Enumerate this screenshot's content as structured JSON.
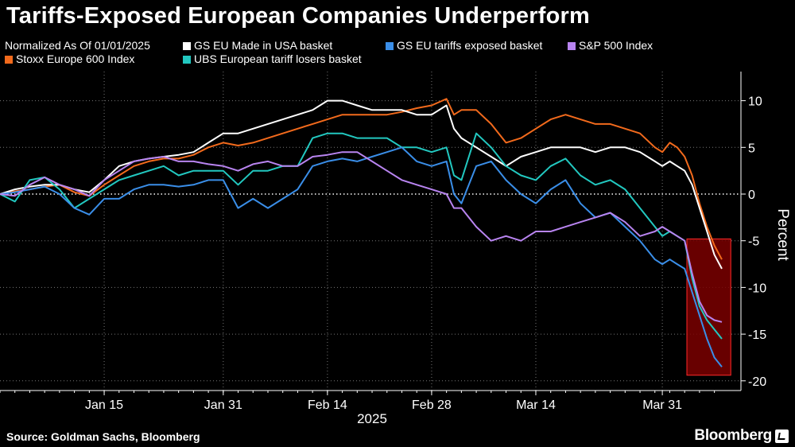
{
  "title": "Tariffs-Exposed European Companies Underperform",
  "source": "Source: Goldman Sachs, Bloomberg",
  "brand": "Bloomberg",
  "legend": {
    "note": "Normalized As Of 01/01/2025"
  },
  "colors": {
    "background": "#000000",
    "grid": "#777777",
    "highlight_fill": "#7a0000",
    "highlight_stroke": "#ff2a2a"
  },
  "chart_data": {
    "type": "line",
    "title": "Tariffs-Exposed European Companies Underperform",
    "xlabel": "2025",
    "ylabel": "Percent",
    "ylim": [
      -21,
      13
    ],
    "yticks": [
      10,
      5,
      0,
      -5,
      -10,
      -15,
      -20
    ],
    "xlim": [
      0,
      97
    ],
    "zero_line": "dotted",
    "x_ticks": [
      {
        "x": 14,
        "label": "Jan 15"
      },
      {
        "x": 30,
        "label": "Jan 31"
      },
      {
        "x": 44,
        "label": "Feb 14"
      },
      {
        "x": 58,
        "label": "Feb 28"
      },
      {
        "x": 72,
        "label": "Mar 14"
      },
      {
        "x": 89,
        "label": "Mar 31"
      }
    ],
    "highlight": {
      "x_from": 92.3,
      "x_to": 98.2,
      "y_from": -19.4,
      "y_to": -4.8
    },
    "series": [
      {
        "name": "Stoxx Europe 600 Index",
        "color": "#f26a1c",
        "x": [
          0,
          2,
          4,
          6,
          8,
          10,
          12,
          14,
          16,
          18,
          20,
          22,
          24,
          26,
          28,
          30,
          32,
          34,
          36,
          38,
          40,
          42,
          44,
          46,
          48,
          50,
          52,
          54,
          56,
          58,
          60,
          61,
          62,
          64,
          66,
          68,
          70,
          72,
          74,
          76,
          78,
          80,
          82,
          84,
          86,
          88,
          89,
          90,
          91,
          92,
          93,
          94,
          95,
          96,
          97
        ],
        "y": [
          0,
          0.3,
          0.5,
          0.8,
          1.0,
          0.2,
          -0.2,
          1.0,
          2.0,
          3.0,
          3.5,
          3.8,
          3.8,
          4.2,
          5.0,
          5.5,
          5.2,
          5.5,
          6.0,
          6.5,
          7.0,
          7.5,
          8.0,
          8.5,
          8.5,
          8.5,
          8.5,
          8.8,
          9.2,
          9.5,
          10.2,
          8.5,
          9.0,
          9.0,
          7.5,
          5.5,
          6.0,
          7.0,
          8.0,
          8.5,
          8.0,
          7.5,
          7.5,
          7.0,
          6.5,
          5.0,
          4.5,
          5.5,
          5.0,
          4.0,
          2.0,
          -1.0,
          -3.5,
          -5.5,
          -7.0
        ]
      },
      {
        "name": "GS EU Made in USA basket",
        "color": "#ffffff",
        "x": [
          0,
          2,
          4,
          6,
          8,
          10,
          12,
          14,
          16,
          18,
          20,
          22,
          24,
          26,
          28,
          30,
          32,
          34,
          36,
          38,
          40,
          42,
          44,
          46,
          48,
          50,
          52,
          54,
          56,
          58,
          60,
          61,
          62,
          64,
          66,
          68,
          70,
          72,
          74,
          76,
          78,
          80,
          82,
          84,
          86,
          88,
          89,
          90,
          91,
          92,
          93,
          94,
          95,
          96,
          97
        ],
        "y": [
          0,
          0.5,
          0.8,
          1.0,
          1.0,
          0.5,
          0.2,
          1.5,
          3.0,
          3.5,
          3.8,
          4.0,
          4.2,
          4.5,
          5.5,
          6.5,
          6.5,
          7.0,
          7.5,
          8.0,
          8.5,
          9.0,
          10.0,
          10.0,
          9.5,
          9.0,
          9.0,
          9.0,
          8.5,
          8.5,
          9.5,
          7.0,
          6.0,
          5.0,
          4.0,
          3.0,
          4.0,
          4.5,
          5.0,
          5.0,
          5.0,
          4.5,
          5.0,
          5.0,
          4.5,
          3.5,
          3.0,
          3.5,
          3.0,
          2.5,
          1.0,
          -1.5,
          -4.0,
          -6.5,
          -8.0
        ]
      },
      {
        "name": "UBS European tariff losers basket",
        "color": "#22c8c0",
        "x": [
          0,
          2,
          4,
          6,
          8,
          10,
          12,
          14,
          16,
          18,
          20,
          22,
          24,
          26,
          28,
          30,
          32,
          34,
          36,
          38,
          40,
          42,
          44,
          46,
          48,
          50,
          52,
          54,
          56,
          58,
          60,
          61,
          62,
          64,
          66,
          68,
          70,
          72,
          74,
          76,
          78,
          80,
          82,
          84,
          86,
          88,
          89,
          90,
          91,
          92,
          93,
          94,
          95,
          96,
          97
        ],
        "y": [
          0,
          -0.8,
          1.5,
          1.8,
          0.5,
          -1.5,
          -0.5,
          0.5,
          1.5,
          2.0,
          2.5,
          3.0,
          2.0,
          2.5,
          2.5,
          2.5,
          1.0,
          2.5,
          2.5,
          3.0,
          3.0,
          6.0,
          6.5,
          6.5,
          6.0,
          6.0,
          6.0,
          5.0,
          5.0,
          4.5,
          5.0,
          2.0,
          1.5,
          6.5,
          5.0,
          3.0,
          2.0,
          1.5,
          3.0,
          3.8,
          2.0,
          1.0,
          1.5,
          0.5,
          -1.5,
          -3.5,
          -4.5,
          -4.0,
          -4.5,
          -5.0,
          -9.0,
          -12.0,
          -13.5,
          -14.5,
          -15.5
        ]
      },
      {
        "name": "GS EU tariffs exposed basket",
        "color": "#3a8ee8",
        "x": [
          0,
          2,
          4,
          6,
          8,
          10,
          12,
          14,
          16,
          18,
          20,
          22,
          24,
          26,
          28,
          30,
          32,
          34,
          36,
          38,
          40,
          42,
          44,
          46,
          48,
          50,
          52,
          54,
          56,
          58,
          60,
          61,
          62,
          64,
          66,
          68,
          70,
          72,
          74,
          76,
          78,
          80,
          82,
          84,
          86,
          88,
          89,
          90,
          91,
          92,
          93,
          94,
          95,
          96,
          97
        ],
        "y": [
          0,
          0.2,
          0.5,
          0.8,
          0.0,
          -1.5,
          -2.2,
          -0.5,
          -0.5,
          0.5,
          1.0,
          1.0,
          0.8,
          1.0,
          1.5,
          1.5,
          -1.5,
          -0.5,
          -1.5,
          -0.5,
          0.5,
          3.0,
          3.5,
          3.8,
          3.5,
          4.0,
          4.5,
          5.0,
          3.5,
          3.0,
          3.5,
          0.0,
          -1.0,
          3.0,
          3.5,
          1.5,
          0.0,
          -1.0,
          0.5,
          1.5,
          -1.0,
          -2.5,
          -2.0,
          -3.5,
          -5.0,
          -7.0,
          -7.5,
          -7.0,
          -7.5,
          -8.0,
          -10.5,
          -13.0,
          -15.5,
          -17.5,
          -18.5
        ]
      },
      {
        "name": "S&P 500 Index",
        "color": "#b884f0",
        "x": [
          0,
          2,
          4,
          6,
          8,
          10,
          12,
          14,
          16,
          18,
          20,
          22,
          24,
          26,
          28,
          30,
          32,
          34,
          36,
          38,
          40,
          42,
          44,
          46,
          48,
          50,
          52,
          54,
          56,
          58,
          60,
          61,
          62,
          64,
          66,
          68,
          70,
          72,
          74,
          76,
          78,
          80,
          82,
          84,
          86,
          88,
          89,
          90,
          91,
          92,
          93,
          94,
          95,
          96,
          97
        ],
        "y": [
          0,
          -0.2,
          1.0,
          1.8,
          1.0,
          0.5,
          -0.2,
          1.5,
          2.5,
          3.5,
          3.8,
          4.0,
          3.5,
          3.5,
          3.2,
          3.0,
          2.5,
          3.2,
          3.5,
          3.0,
          3.0,
          4.0,
          4.2,
          4.5,
          4.5,
          3.5,
          2.5,
          1.5,
          1.0,
          0.5,
          0.0,
          -1.5,
          -1.5,
          -3.5,
          -5.0,
          -4.5,
          -5.0,
          -4.0,
          -4.0,
          -3.5,
          -3.0,
          -2.5,
          -2.0,
          -3.0,
          -4.5,
          -4.0,
          -3.5,
          -4.0,
          -4.5,
          -5.0,
          -8.5,
          -11.5,
          -13.0,
          -13.5,
          -13.7
        ]
      }
    ]
  }
}
